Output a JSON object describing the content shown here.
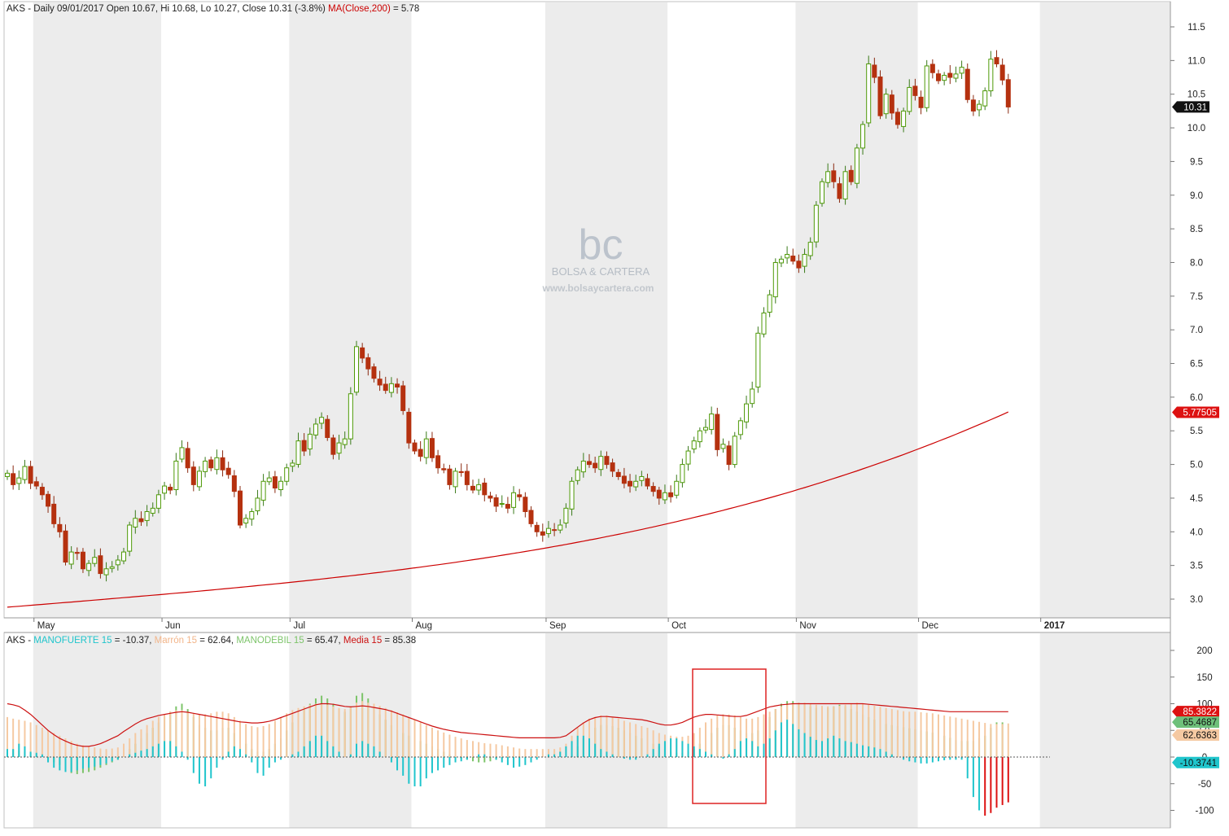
{
  "header": {
    "symbol": "AKS",
    "info_main": "AKS - Daily 09/01/2017 Open 10.67, Hi 10.68, Lo 10.27, Close 10.31 (-3.8%)",
    "info_ma": "MA(Close,200)",
    "info_ma_value": " = 5.78"
  },
  "watermark": {
    "logo": "bc",
    "name": "BOLSA & CARTERA",
    "url": "www.bolsaycartera.com"
  },
  "colors": {
    "up": "#4e9a06",
    "down": "#b5310f",
    "ma": "#cc0000",
    "manofuerte": "#20c5cc",
    "marron": "#f5c9a2",
    "manodebil": "#7dc46a",
    "media": "#cc1111",
    "neg_strong": "#dd1111",
    "band": "#ececec",
    "annotation": "#dd2222"
  },
  "chart_data": [
    {
      "type": "candlestick",
      "title": "AKS - Daily 09/01/2017 Open 10.67, Hi 10.68, Lo 10.27, Close 10.31 (-3.8%)",
      "ylim": [
        2.7,
        11.9
      ],
      "y_ticks": [
        "3.0",
        "3.5",
        "4.0",
        "4.5",
        "5.0",
        "5.5",
        "6.0",
        "6.5",
        "7.0",
        "7.5",
        "8.0",
        "8.5",
        "9.0",
        "9.5",
        "10.0",
        "10.5",
        "11.0",
        "11.5"
      ],
      "x_labels": [
        {
          "label": "May",
          "index": 5
        },
        {
          "label": "Jun",
          "index": 27
        },
        {
          "label": "Jul",
          "index": 49
        },
        {
          "label": "Aug",
          "index": 70
        },
        {
          "label": "Sep",
          "index": 93
        },
        {
          "label": "Oct",
          "index": 114
        },
        {
          "label": "Nov",
          "index": 136
        },
        {
          "label": "Dec",
          "index": 157
        },
        {
          "label": "2017",
          "index": 178
        }
      ],
      "last_close_label": "10.31",
      "ma_label": "5.77505",
      "closes": [
        4.87,
        4.7,
        4.8,
        4.97,
        4.72,
        4.68,
        4.55,
        4.38,
        4.12,
        4.0,
        3.55,
        3.7,
        3.68,
        3.45,
        3.53,
        3.62,
        3.38,
        3.45,
        3.48,
        3.58,
        3.7,
        4.1,
        4.2,
        4.15,
        4.3,
        4.35,
        4.55,
        4.68,
        4.62,
        5.05,
        5.25,
        4.95,
        4.7,
        4.9,
        5.05,
        4.95,
        5.1,
        4.92,
        4.85,
        4.6,
        4.1,
        4.2,
        4.3,
        4.5,
        4.75,
        4.8,
        4.65,
        4.75,
        4.95,
        5.02,
        5.35,
        5.2,
        5.45,
        5.6,
        5.7,
        5.4,
        5.15,
        5.32,
        5.38,
        6.05,
        6.75,
        6.58,
        6.42,
        6.28,
        6.18,
        6.1,
        6.2,
        6.15,
        5.8,
        5.32,
        5.2,
        5.12,
        5.38,
        5.1,
        4.95,
        4.92,
        4.7,
        4.9,
        4.88,
        4.7,
        4.62,
        4.7,
        4.55,
        4.5,
        4.38,
        4.42,
        4.35,
        4.58,
        4.52,
        4.3,
        4.12,
        4.0,
        3.95,
        4.05,
        4.02,
        4.1,
        4.35,
        4.75,
        4.92,
        5.05,
        5.0,
        4.95,
        5.12,
        5.0,
        4.9,
        4.82,
        4.72,
        4.68,
        4.75,
        4.82,
        4.68,
        4.6,
        4.5,
        4.58,
        4.52,
        4.75,
        5.0,
        5.2,
        5.35,
        5.5,
        5.55,
        5.75,
        5.22,
        5.3,
        5.0,
        5.42,
        5.65,
        5.9,
        6.12,
        6.95,
        7.25,
        7.52,
        8.0,
        8.05,
        8.12,
        8.02,
        7.92,
        8.12,
        8.3,
        8.85,
        9.2,
        9.35,
        9.2,
        8.95,
        9.35,
        9.2,
        9.7,
        10.05,
        10.95,
        10.75,
        10.18,
        10.5,
        10.22,
        10.05,
        10.25,
        10.6,
        10.48,
        10.3,
        10.92,
        10.82,
        10.7,
        10.78,
        10.75,
        10.8,
        10.9,
        10.42,
        10.25,
        10.35,
        10.55,
        11.02,
        10.95,
        10.71,
        10.31
      ]
    },
    {
      "type": "bar",
      "title": "AKS - MANOFUERTE 15 = -10.37, Marrón 15 = 62.64, MANODEBIL 15 = 65.47, Media 15 = 85.38",
      "ylim": [
        -130,
        230
      ],
      "y_ticks": [
        "-100",
        "-50",
        "0",
        "50",
        "100",
        "150",
        "200"
      ],
      "legend": [
        {
          "name": "MANOFUERTE 15",
          "value": "= -10.37"
        },
        {
          "name": "Marrón 15",
          "value": "= 62.64"
        },
        {
          "name": "MANODEBIL 15",
          "value": "= 65.47"
        },
        {
          "name": "Media 15",
          "value": "= 85.38"
        }
      ],
      "value_labels": [
        "85.3822",
        "65.4687",
        "62.6363",
        "-10.3741"
      ],
      "manofuerte": [
        15,
        15,
        25,
        20,
        10,
        8,
        5,
        -10,
        -20,
        -25,
        -28,
        -28,
        -25,
        -22,
        -20,
        -18,
        -15,
        -12,
        -8,
        -5,
        0,
        5,
        8,
        12,
        15,
        20,
        25,
        30,
        30,
        20,
        10,
        -5,
        -30,
        -50,
        -55,
        -40,
        -20,
        -5,
        10,
        20,
        15,
        5,
        -10,
        -30,
        -35,
        -20,
        -10,
        -5,
        0,
        5,
        10,
        20,
        30,
        40,
        40,
        30,
        20,
        10,
        0,
        5,
        25,
        30,
        25,
        20,
        10,
        0,
        -10,
        -25,
        -35,
        -50,
        -55,
        -55,
        -40,
        -30,
        -25,
        -20,
        -15,
        -10,
        -8,
        -5,
        0,
        5,
        5,
        0,
        -5,
        -10,
        -15,
        -20,
        -18,
        -15,
        -10,
        -5,
        0,
        5,
        5,
        10,
        20,
        30,
        40,
        40,
        35,
        25,
        15,
        10,
        5,
        0,
        -3,
        -5,
        -5,
        0,
        5,
        15,
        25,
        30,
        35,
        35,
        30,
        25,
        20,
        15,
        10,
        5,
        0,
        -3,
        5,
        15,
        30,
        35,
        30,
        20,
        25,
        35,
        50,
        65,
        70,
        62,
        52,
        45,
        38,
        32,
        30,
        35,
        40,
        35,
        30,
        28,
        25,
        22,
        20,
        18,
        15,
        10,
        5,
        0,
        -5,
        -8,
        -10,
        -12,
        -12,
        -10,
        -8,
        -6,
        -5,
        -5,
        -5,
        -40,
        -75,
        -100,
        -110,
        -105,
        -95,
        -90,
        -85,
        -10
      ],
      "marron": [
        75,
        72,
        70,
        68,
        65,
        60,
        55,
        50,
        45,
        40,
        35,
        30,
        25,
        22,
        20,
        18,
        16,
        15,
        16,
        18,
        25,
        35,
        45,
        52,
        60,
        68,
        75,
        80,
        85,
        88,
        88,
        85,
        82,
        80,
        80,
        82,
        85,
        85,
        82,
        75,
        68,
        62,
        58,
        56,
        58,
        62,
        68,
        75,
        82,
        88,
        92,
        95,
        98,
        100,
        100,
        98,
        95,
        92,
        90,
        95,
        102,
        105,
        102,
        100,
        96,
        92,
        88,
        84,
        80,
        75,
        70,
        65,
        60,
        55,
        50,
        46,
        42,
        38,
        35,
        32,
        30,
        28,
        26,
        25,
        24,
        22,
        20,
        18,
        16,
        15,
        15,
        15,
        15,
        15,
        15,
        18,
        25,
        40,
        55,
        65,
        72,
        75,
        78,
        78,
        75,
        72,
        68,
        65,
        62,
        58,
        55,
        50,
        45,
        42,
        40,
        38,
        38,
        40,
        45,
        55,
        65,
        72,
        78,
        80,
        80,
        78,
        75,
        72,
        72,
        75,
        80,
        85,
        90,
        95,
        98,
        100,
        102,
        102,
        100,
        98,
        96,
        95,
        95,
        96,
        98,
        100,
        102,
        100,
        98,
        96,
        94,
        92,
        90,
        88,
        86,
        85,
        85,
        84,
        83,
        82,
        80,
        78,
        76,
        74,
        72,
        70,
        68,
        66,
        64,
        62,
        62,
        62,
        63
      ],
      "manodebil": [
        15,
        14,
        12,
        10,
        8,
        5,
        0,
        -5,
        -10,
        -15,
        -25,
        -30,
        -32,
        -30,
        -28,
        -25,
        -20,
        -15,
        -10,
        -5,
        5,
        15,
        25,
        35,
        45,
        55,
        65,
        75,
        85,
        95,
        100,
        90,
        75,
        60,
        55,
        50,
        50,
        55,
        55,
        45,
        35,
        25,
        15,
        10,
        10,
        15,
        25,
        35,
        50,
        65,
        80,
        90,
        100,
        110,
        115,
        110,
        100,
        90,
        85,
        95,
        115,
        120,
        110,
        95,
        80,
        70,
        60,
        50,
        45,
        40,
        35,
        30,
        25,
        20,
        15,
        10,
        5,
        0,
        -3,
        -5,
        -8,
        -10,
        -10,
        -8,
        -5,
        -3,
        0,
        0,
        0,
        0,
        0,
        0,
        0,
        0,
        0,
        0,
        0,
        5,
        20,
        35,
        45,
        55,
        60,
        60,
        58,
        55,
        50,
        45,
        40,
        35,
        30,
        25,
        20,
        15,
        10,
        8,
        8,
        10,
        15,
        25,
        35,
        45,
        55,
        60,
        60,
        55,
        50,
        45,
        45,
        50,
        60,
        75,
        90,
        100,
        105,
        105,
        102,
        98,
        95,
        92,
        90,
        92,
        95,
        98,
        95,
        90,
        85,
        80,
        75,
        70,
        65,
        62,
        60,
        58,
        56,
        54,
        52,
        50,
        48,
        46,
        44,
        40,
        36,
        32,
        30,
        30,
        30,
        35,
        40,
        55,
        65,
        65
      ],
      "media": [
        100,
        98,
        95,
        88,
        80,
        70,
        60,
        50,
        42,
        35,
        30,
        25,
        22,
        20,
        20,
        22,
        25,
        30,
        35,
        40,
        48,
        55,
        62,
        68,
        72,
        75,
        78,
        80,
        82,
        84,
        85,
        84,
        82,
        80,
        78,
        76,
        74,
        72,
        70,
        68,
        66,
        65,
        64,
        64,
        65,
        67,
        70,
        74,
        78,
        82,
        86,
        90,
        94,
        98,
        100,
        100,
        99,
        97,
        95,
        94,
        95,
        96,
        95,
        93,
        91,
        89,
        86,
        82,
        78,
        74,
        70,
        66,
        62,
        58,
        55,
        52,
        50,
        48,
        46,
        45,
        44,
        43,
        42,
        41,
        40,
        39,
        38,
        37,
        36,
        36,
        36,
        36,
        36,
        36,
        36,
        37,
        40,
        48,
        56,
        64,
        70,
        74,
        76,
        76,
        75,
        74,
        73,
        72,
        71,
        70,
        68,
        65,
        62,
        60,
        60,
        62,
        65,
        70,
        75,
        78,
        80,
        80,
        79,
        78,
        77,
        76,
        76,
        78,
        82,
        86,
        90,
        94,
        96,
        98,
        99,
        100,
        100,
        100,
        100,
        100,
        100,
        100,
        100,
        100,
        100,
        100,
        100,
        100,
        99,
        98,
        97,
        96,
        95,
        94,
        93,
        92,
        91,
        90,
        89,
        88,
        87,
        86,
        85,
        85,
        85,
        85,
        85,
        85,
        85,
        85,
        85,
        85,
        85
      ]
    }
  ]
}
